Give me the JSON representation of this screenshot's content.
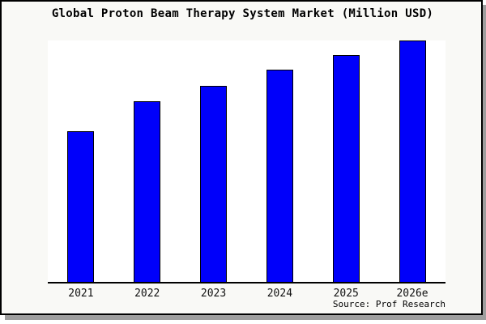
{
  "chart_data": {
    "type": "bar",
    "title": "Global Proton Beam Therapy System Market (Million USD)",
    "categories": [
      "2021",
      "2022",
      "2023",
      "2024",
      "2025",
      "2026e"
    ],
    "values_pct_of_max": [
      62.4,
      74.9,
      81.2,
      87.9,
      94.0,
      100
    ],
    "value_note": "y-axis has no scale labels; values are bar heights relative to tallest bar (2026e) estimated from pixels",
    "xlabel": "",
    "ylabel": "",
    "y_axis_shown": false,
    "grid": false,
    "legend": false,
    "source_text": "Source: Prof Research"
  },
  "colors": {
    "bar_fill": "#0000fa",
    "bar_border": "#000000",
    "frame_background": "#f9f9f6",
    "plot_background": "#ffffff",
    "frame_border": "#000000",
    "axis_line": "#000000",
    "shadow": "#9e9e9e",
    "title_text": "#000000",
    "tick_text": "#111111"
  }
}
